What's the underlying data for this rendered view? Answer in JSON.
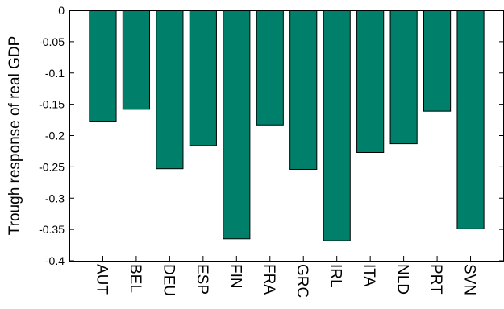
{
  "chart_data": {
    "type": "bar",
    "title": "",
    "xlabel": "",
    "ylabel": "Trough response of real GDP",
    "categories": [
      "AUT",
      "BEL",
      "DEU",
      "ESP",
      "FIN",
      "FRA",
      "GRC",
      "IRL",
      "ITA",
      "NLD",
      "PRT",
      "SVN"
    ],
    "values": [
      -0.177,
      -0.158,
      -0.253,
      -0.216,
      -0.365,
      -0.183,
      -0.254,
      -0.368,
      -0.227,
      -0.213,
      -0.161,
      -0.349
    ],
    "ylim": [
      -0.4,
      0
    ],
    "yticks": [
      0,
      -0.05,
      -0.1,
      -0.15,
      -0.2,
      -0.25,
      -0.3,
      -0.35,
      -0.4
    ],
    "ytick_labels": [
      "0",
      "-0.05",
      "-0.1",
      "-0.15",
      "-0.2",
      "-0.25",
      "-0.3",
      "-0.35",
      "-0.4"
    ],
    "bar_color": "#00806a",
    "bar_edge_color": "#000000",
    "grid": false,
    "legend": "none"
  }
}
